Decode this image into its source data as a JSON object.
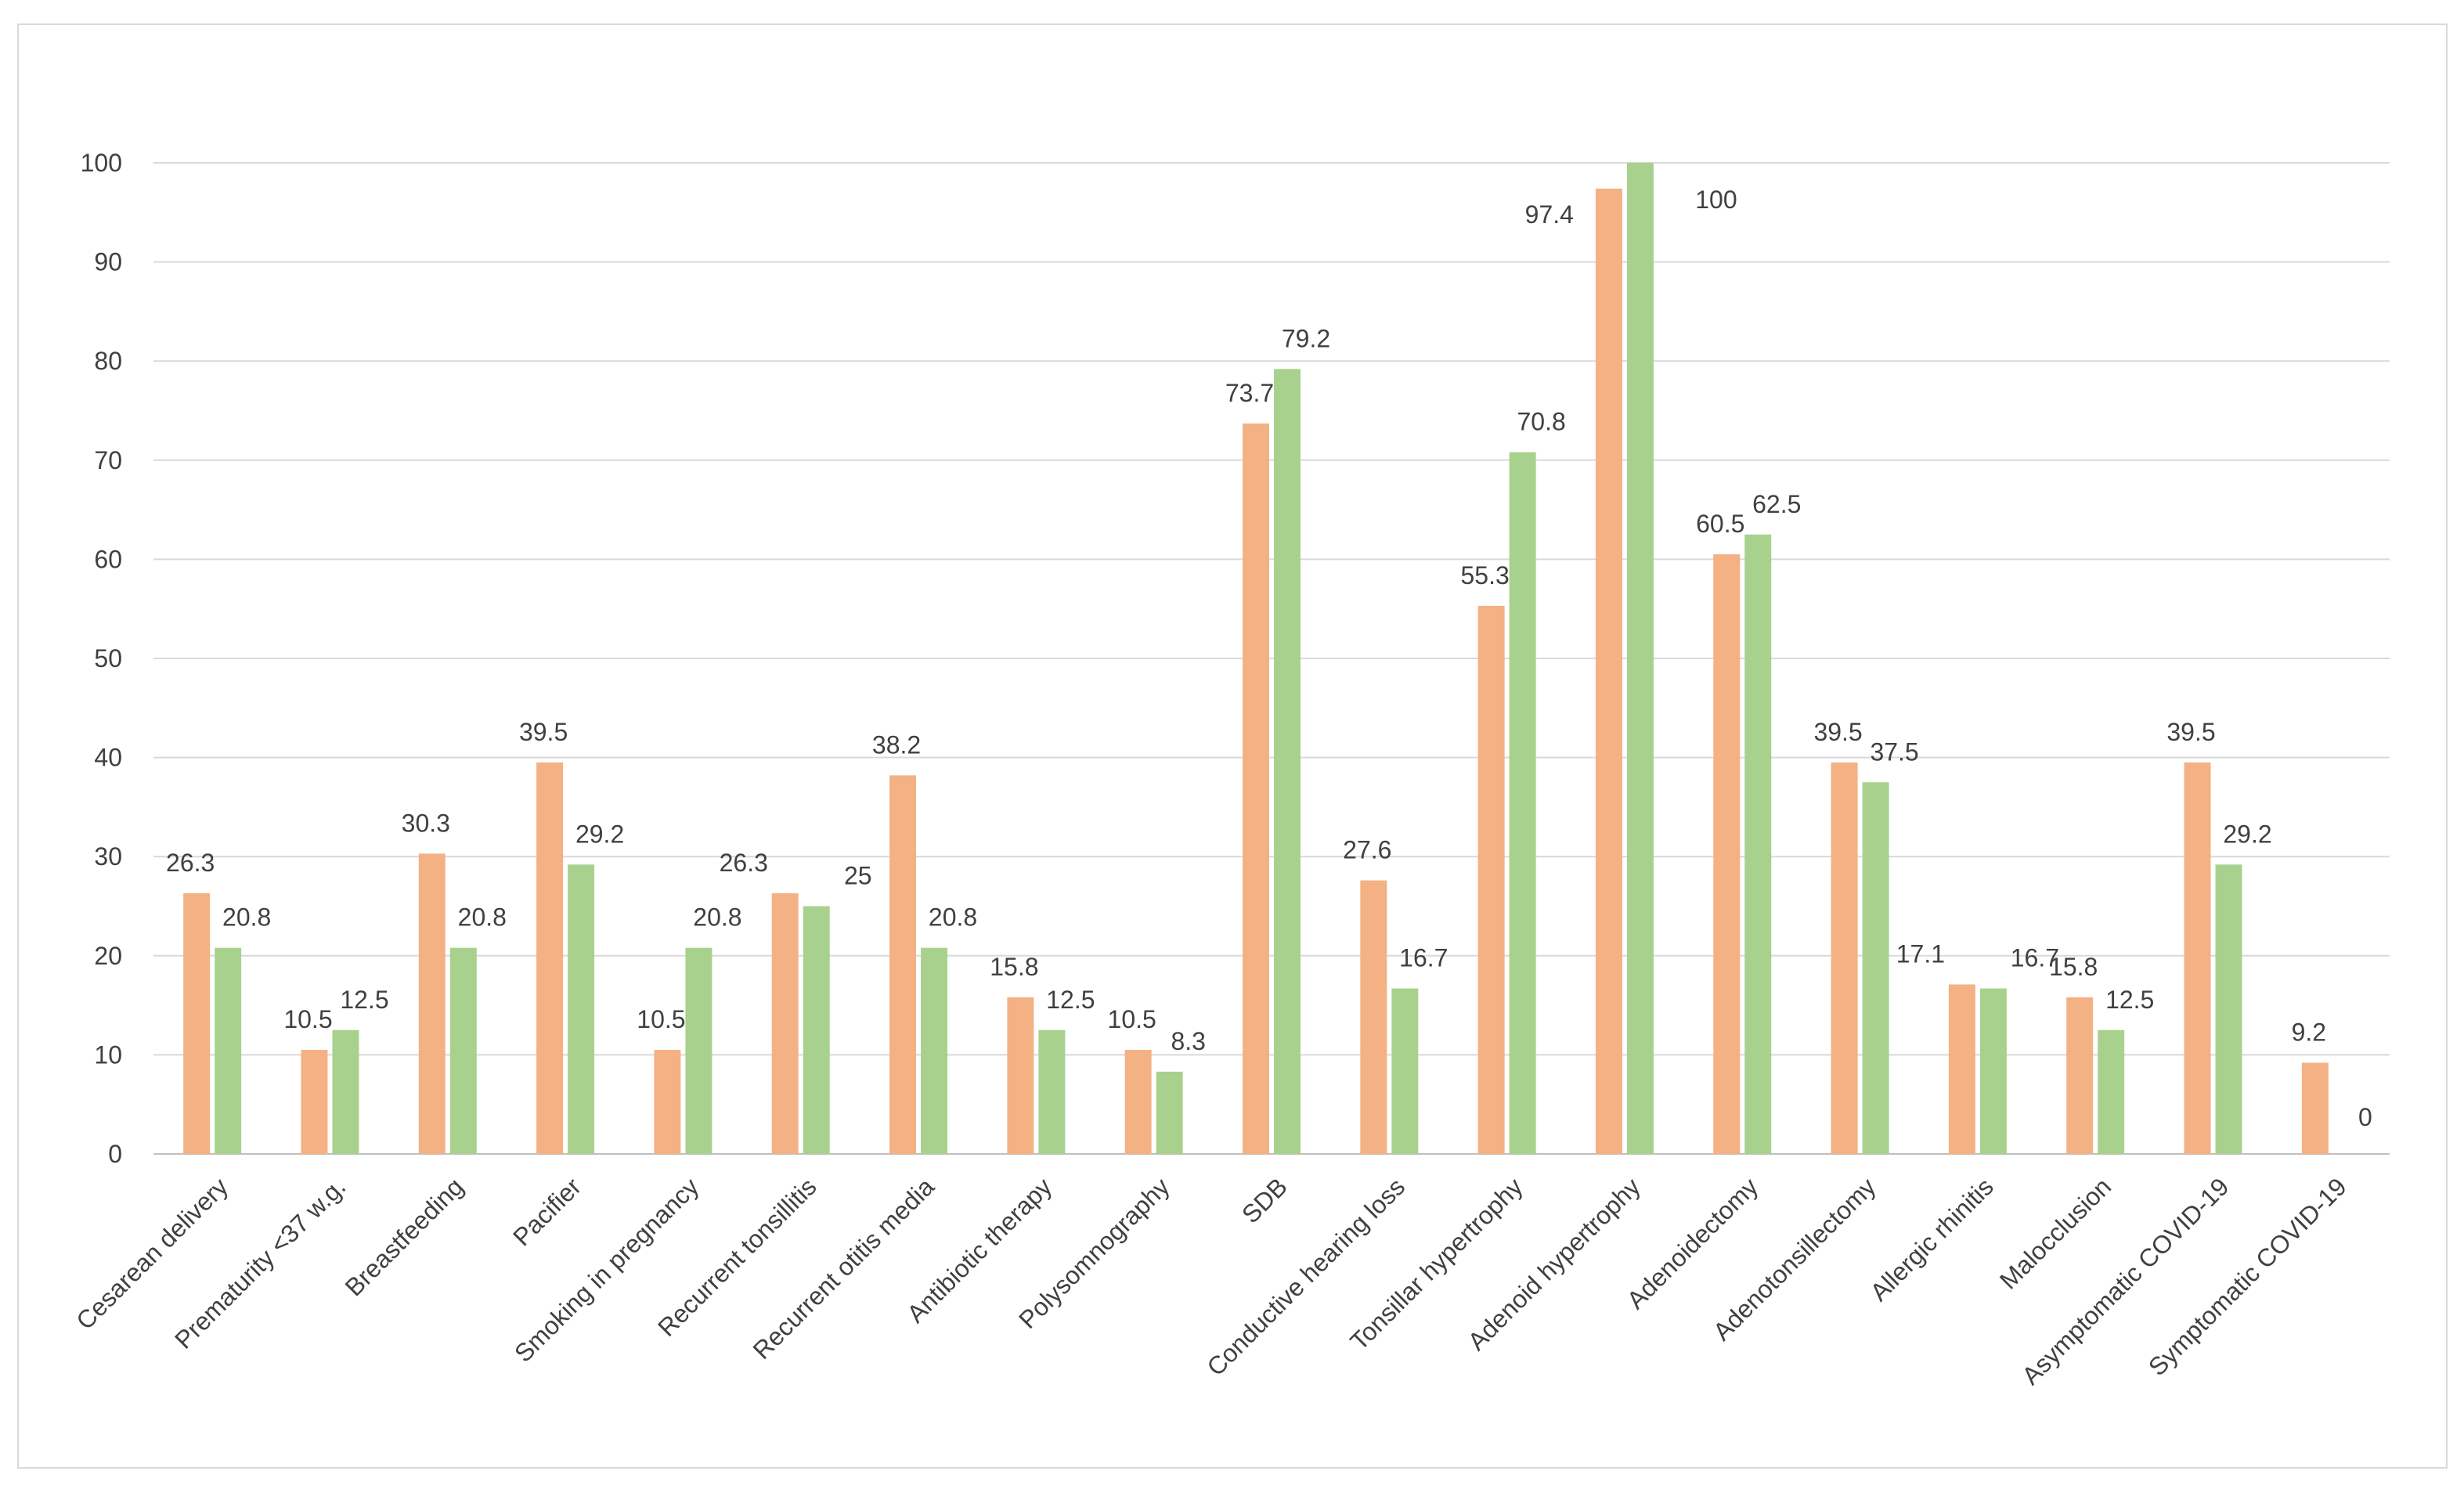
{
  "chart_data": {
    "type": "bar",
    "title": "",
    "xlabel": "",
    "ylabel": "",
    "ylim": [
      0,
      100
    ],
    "yticks": [
      0,
      10,
      20,
      30,
      40,
      50,
      60,
      70,
      80,
      90,
      100
    ],
    "grid": true,
    "legend": "none",
    "categories": [
      "Cesarean delivery",
      "Prematurity <37 w.g.",
      "Breastfeeding",
      "Pacifier",
      "Smoking in pregnancy",
      "Recurrent tonsillitis",
      "Recurrent otitis media",
      "Antibiotic therapy",
      "Polysomnography",
      "SDB",
      "Conductive hearing loss",
      "Tonsillar hypertrophy",
      "Adenoid hypertrophy",
      "Adenoidectomy",
      "Adenotonsillectomy",
      "Allergic rhinitis",
      "Malocclusion",
      "Asymptomatic COVID-19",
      "Symptomatic COVID-19"
    ],
    "series": [
      {
        "name": "Series 1",
        "color": "#f4b183",
        "values": [
          26.3,
          10.5,
          30.3,
          39.5,
          10.5,
          26.3,
          38.2,
          15.8,
          10.5,
          73.7,
          27.6,
          55.3,
          97.4,
          60.5,
          39.5,
          17.1,
          15.8,
          39.5,
          9.2
        ],
        "labels": [
          "26.3",
          "10.5",
          "30.3",
          "39.5",
          "10.5",
          "26.3",
          "38.2",
          "15.8",
          "10.5",
          "73.7",
          "27.6",
          "55.3",
          "97.4",
          "60.5",
          "39.5",
          "17.1",
          "15.8",
          "39.5",
          "9.2"
        ]
      },
      {
        "name": "Series 2",
        "color": "#a9d18e",
        "values": [
          20.8,
          12.5,
          20.8,
          29.2,
          20.8,
          25,
          20.8,
          12.5,
          8.3,
          79.2,
          16.7,
          70.8,
          100,
          62.5,
          37.5,
          16.7,
          12.5,
          29.2,
          0
        ],
        "labels": [
          "20.8",
          "12.5",
          "20.8",
          "29.2",
          "20.8",
          "25",
          "20.8",
          "12.5",
          "8.3",
          "79.2",
          "16.7",
          "70.8",
          "100",
          "62.5",
          "37.5",
          "16.7",
          "12.5",
          "29.2",
          "0"
        ]
      }
    ]
  }
}
